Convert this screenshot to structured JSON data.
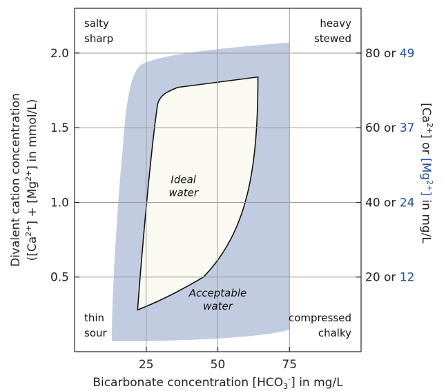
{
  "chart_data": {
    "type": "area",
    "xlabel_parts": [
      "Bicarbonate concentration [HCO",
      "3",
      "-",
      "] in mg/L"
    ],
    "ylabel_line1": "Divalent cation concentration",
    "ylabel_line2_parts": [
      "([Ca",
      "2+",
      "] + [Mg",
      "2+",
      "] in mmol/L)"
    ],
    "y2label_parts": [
      "[Ca",
      "2+",
      "] or ",
      "[Mg",
      "2+",
      "]",
      " in mg/L"
    ],
    "xlim": [
      0,
      100
    ],
    "ylim": [
      0,
      2.3
    ],
    "grid": true,
    "x_ticks": [
      {
        "value": 25,
        "label": "25"
      },
      {
        "value": 50,
        "label": "50"
      },
      {
        "value": 75,
        "label": "75"
      }
    ],
    "y_ticks": [
      {
        "value": 0.5,
        "label": "0.5"
      },
      {
        "value": 1.0,
        "label": "1.0"
      },
      {
        "value": 1.5,
        "label": "1.5"
      },
      {
        "value": 2.0,
        "label": "2.0"
      }
    ],
    "y2_ticks": [
      {
        "value": 0.5,
        "ca": "20",
        "sep": " or ",
        "mg": "12"
      },
      {
        "value": 1.0,
        "ca": "40",
        "sep": " or ",
        "mg": "24"
      },
      {
        "value": 1.5,
        "ca": "60",
        "sep": " or ",
        "mg": "37"
      },
      {
        "value": 2.0,
        "ca": "80",
        "sep": " or ",
        "mg": "49"
      }
    ],
    "regions": [
      {
        "name": "Acceptable water",
        "label_lines": [
          "Acceptable",
          "water"
        ],
        "label_at": [
          50,
          0.37
        ],
        "fill": "#c1cce0",
        "outline": [
          [
            13,
            0.07
          ],
          [
            22,
            0.07
          ],
          [
            75,
            0.15
          ],
          [
            75,
            2.07
          ],
          [
            28,
            1.95
          ],
          [
            13,
            0.07
          ]
        ]
      },
      {
        "name": "Ideal water",
        "label_lines": [
          "Ideal",
          "water"
        ],
        "label_at": [
          38,
          1.13
        ],
        "fill": "#fafaf2",
        "outline": [
          [
            22,
            0.28
          ],
          [
            30,
            1.71
          ],
          [
            64,
            1.84
          ],
          [
            64,
            0.75
          ],
          [
            22,
            0.28
          ]
        ]
      }
    ],
    "corner_labels": [
      {
        "position": "top-left",
        "lines": [
          "salty",
          "sharp"
        ]
      },
      {
        "position": "top-right",
        "lines": [
          "heavy",
          "stewed"
        ]
      },
      {
        "position": "bottom-left",
        "lines": [
          "thin",
          "sour"
        ]
      },
      {
        "position": "bottom-right",
        "lines": [
          "compressed",
          "chalky"
        ]
      }
    ]
  },
  "colors": {
    "acceptable_fill": "#c1cce0",
    "ideal_fill": "#fafaf2",
    "mg_text": "#1f4e9c",
    "axis": "#222222",
    "grid": "#9a9a9a"
  }
}
